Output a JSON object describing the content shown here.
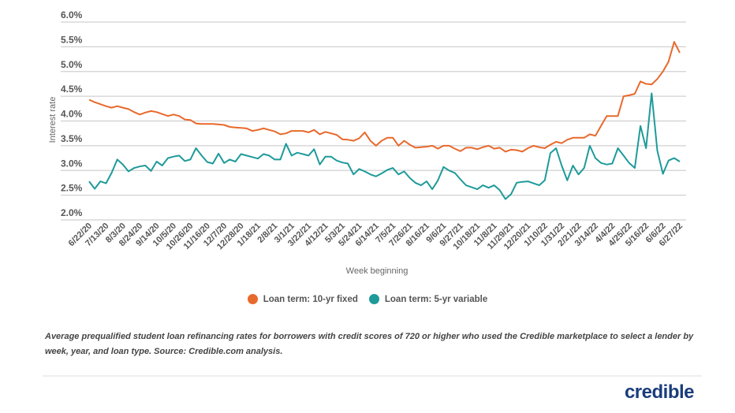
{
  "chart_data": {
    "type": "line",
    "ylabel": "Interest rate",
    "xlabel": "Week beginning",
    "ylim": [
      2.0,
      6.0
    ],
    "y_ticks": [
      "2.0%",
      "2.5%",
      "3.0%",
      "3.5%",
      "4.0%",
      "4.5%",
      "5.0%",
      "5.5%",
      "6.0%"
    ],
    "grid": true,
    "legend_position": "bottom",
    "x": [
      "6/22/20",
      "6/29/20",
      "7/6/20",
      "7/13/20",
      "7/20/20",
      "7/27/20",
      "8/3/20",
      "8/10/20",
      "8/17/20",
      "8/24/20",
      "8/31/20",
      "9/7/20",
      "9/14/20",
      "9/21/20",
      "9/28/20",
      "10/5/20",
      "10/12/20",
      "10/19/20",
      "10/26/20",
      "11/2/20",
      "11/9/20",
      "11/16/20",
      "11/23/20",
      "11/30/20",
      "12/7/20",
      "12/14/20",
      "12/21/20",
      "12/28/20",
      "1/4/21",
      "1/11/21",
      "1/18/21",
      "1/25/21",
      "2/1/21",
      "2/8/21",
      "2/15/21",
      "2/22/21",
      "3/1/21",
      "3/8/21",
      "3/15/21",
      "3/22/21",
      "3/29/21",
      "4/5/21",
      "4/12/21",
      "4/19/21",
      "4/26/21",
      "5/3/21",
      "5/10/21",
      "5/17/21",
      "5/24/21",
      "5/31/21",
      "6/7/21",
      "6/14/21",
      "6/21/21",
      "6/28/21",
      "7/5/21",
      "7/12/21",
      "7/19/21",
      "7/26/21",
      "8/2/21",
      "8/9/21",
      "8/16/21",
      "8/23/21",
      "8/30/21",
      "9/6/21",
      "9/13/21",
      "9/20/21",
      "9/27/21",
      "10/4/21",
      "10/11/21",
      "10/18/21",
      "10/25/21",
      "11/1/21",
      "11/8/21",
      "11/15/21",
      "11/22/21",
      "11/29/21",
      "12/6/21",
      "12/13/21",
      "12/20/21",
      "12/27/21",
      "1/3/22",
      "1/10/22",
      "1/17/22",
      "1/24/22",
      "1/31/22",
      "2/7/22",
      "2/14/22",
      "2/21/22",
      "2/28/22",
      "3/7/22",
      "3/14/22",
      "3/21/22",
      "3/28/22",
      "4/4/22",
      "4/11/22",
      "4/18/22",
      "4/25/22",
      "5/2/22",
      "5/9/22",
      "5/16/22",
      "5/23/22",
      "5/30/22",
      "6/6/22",
      "6/13/22",
      "6/20/22",
      "6/27/22"
    ],
    "x_tick_labels": [
      "6/22/20",
      "7/13/20",
      "8/3/20",
      "8/24/20",
      "9/14/20",
      "10/5/20",
      "10/26/20",
      "11/16/20",
      "12/7/20",
      "12/28/20",
      "1/18/21",
      "2/8/21",
      "3/1/21",
      "3/22/21",
      "4/12/21",
      "5/3/21",
      "5/24/21",
      "6/14/21",
      "7/5/21",
      "7/26/21",
      "8/16/21",
      "9/6/21",
      "9/27/21",
      "10/18/21",
      "11/8/21",
      "11/29/21",
      "12/20/21",
      "1/10/22",
      "1/31/22",
      "2/21/22",
      "3/14/22",
      "4/4/22",
      "4/25/22",
      "5/16/22",
      "6/6/22",
      "6/27/22"
    ],
    "series": [
      {
        "name": "Loan term: 10-yr fixed",
        "color": "#e8692c",
        "values": [
          4.43,
          4.38,
          4.34,
          4.3,
          4.27,
          4.3,
          4.27,
          4.24,
          4.18,
          4.13,
          4.17,
          4.2,
          4.18,
          4.14,
          4.1,
          4.13,
          4.1,
          4.03,
          4.02,
          3.95,
          3.94,
          3.94,
          3.94,
          3.93,
          3.92,
          3.88,
          3.87,
          3.86,
          3.85,
          3.8,
          3.82,
          3.85,
          3.82,
          3.79,
          3.73,
          3.75,
          3.8,
          3.8,
          3.8,
          3.77,
          3.82,
          3.73,
          3.78,
          3.75,
          3.72,
          3.63,
          3.62,
          3.6,
          3.65,
          3.77,
          3.6,
          3.5,
          3.6,
          3.66,
          3.66,
          3.5,
          3.6,
          3.52,
          3.46,
          3.47,
          3.48,
          3.5,
          3.44,
          3.5,
          3.5,
          3.44,
          3.39,
          3.46,
          3.46,
          3.43,
          3.47,
          3.5,
          3.44,
          3.46,
          3.38,
          3.42,
          3.41,
          3.38,
          3.45,
          3.5,
          3.47,
          3.45,
          3.52,
          3.58,
          3.55,
          3.62,
          3.66,
          3.66,
          3.66,
          3.73,
          3.7,
          3.9,
          4.1,
          4.1,
          4.1,
          4.5,
          4.52,
          4.55,
          4.8,
          4.75,
          4.74,
          4.85,
          5.0,
          5.2,
          5.6,
          5.38
        ]
      },
      {
        "name": "Loan term: 5-yr variable",
        "color": "#1f9a9a",
        "values": [
          2.78,
          2.63,
          2.78,
          2.74,
          2.95,
          3.22,
          3.12,
          2.98,
          3.05,
          3.08,
          3.1,
          2.99,
          3.18,
          3.1,
          3.25,
          3.28,
          3.3,
          3.19,
          3.22,
          3.45,
          3.3,
          3.17,
          3.14,
          3.34,
          3.15,
          3.22,
          3.18,
          3.33,
          3.3,
          3.27,
          3.24,
          3.33,
          3.3,
          3.22,
          3.22,
          3.54,
          3.3,
          3.36,
          3.33,
          3.3,
          3.43,
          3.12,
          3.28,
          3.28,
          3.2,
          3.16,
          3.14,
          2.92,
          3.03,
          2.98,
          2.92,
          2.88,
          2.94,
          3.01,
          3.05,
          2.92,
          2.98,
          2.85,
          2.75,
          2.7,
          2.78,
          2.62,
          2.8,
          3.07,
          3.0,
          2.95,
          2.82,
          2.7,
          2.66,
          2.62,
          2.7,
          2.65,
          2.7,
          2.6,
          2.42,
          2.52,
          2.75,
          2.77,
          2.78,
          2.74,
          2.7,
          2.8,
          3.35,
          3.45,
          3.1,
          2.8,
          3.1,
          2.92,
          3.05,
          3.5,
          3.25,
          3.15,
          3.12,
          3.14,
          3.45,
          3.3,
          3.15,
          3.05,
          3.9,
          3.45,
          4.56,
          3.4,
          2.93,
          3.2,
          3.25,
          3.18
        ]
      }
    ]
  },
  "caption": "Average prequalified student loan refinancing rates for borrowers with credit scores of 720 or higher who used the Credible marketplace to select a lender by week, year, and loan type. Source: Credible.com analysis.",
  "logo_text": "credible",
  "colors": {
    "brand": "#1a3d7c",
    "gridline": "#d0d0d0"
  }
}
